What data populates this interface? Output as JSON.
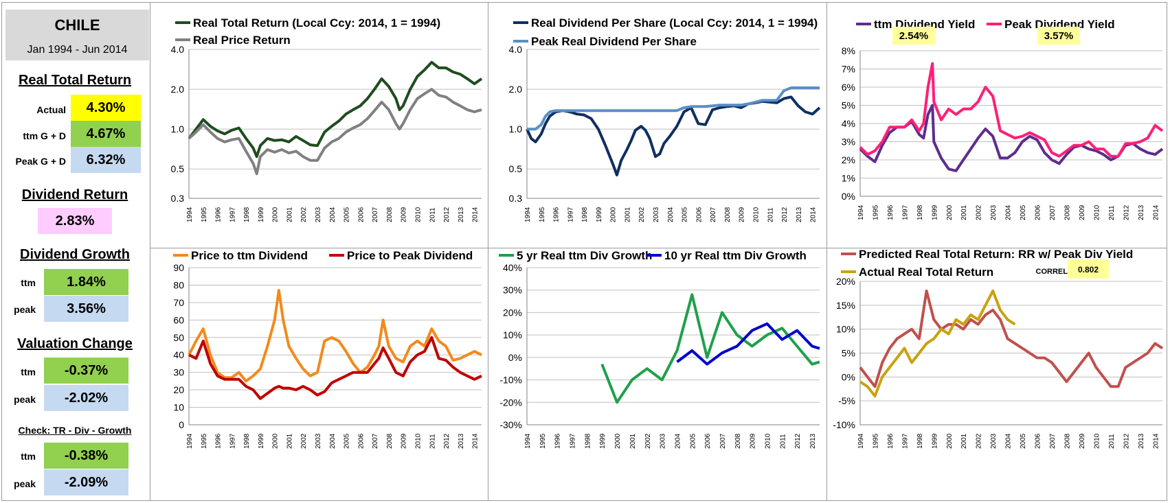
{
  "sidebar": {
    "country": "CHILE",
    "period": "Jan 1994 - Jun 2014",
    "real_total_return": {
      "title": "Real Total Return",
      "actual_label": "Actual",
      "actual": "4.30%",
      "ttm_label": "ttm  G + D",
      "ttm": "4.67%",
      "peak_label": "Peak  G + D",
      "peak": "6.32%"
    },
    "dividend_return": {
      "title": "Dividend Return",
      "value": "2.83%"
    },
    "dividend_growth": {
      "title": "Dividend Growth",
      "ttm_label": "ttm",
      "ttm": "1.84%",
      "peak_label": "peak",
      "peak": "3.56%"
    },
    "valuation_change": {
      "title": "Valuation Change",
      "ttm_label": "ttm",
      "ttm": "-0.37%",
      "peak_label": "peak",
      "peak": "-2.02%"
    },
    "check": {
      "title": "Check: TR - Div - Growth",
      "ttm_label": "ttm",
      "ttm": "-0.38%",
      "peak_label": "peak",
      "peak": "-2.09%"
    }
  },
  "chart_data": [
    {
      "type": "line",
      "id": "c1",
      "scale": "log",
      "x": [
        1994,
        1994.5,
        1995,
        1995.5,
        1996,
        1996.5,
        1997,
        1997.5,
        1998,
        1998.5,
        1998.75,
        1999,
        1999.5,
        2000,
        2000.5,
        2001,
        2001.5,
        2002,
        2002.5,
        2003,
        2003.5,
        2004,
        2004.5,
        2005,
        2005.5,
        2006,
        2006.5,
        2007,
        2007.5,
        2008,
        2008.5,
        2008.75,
        2009,
        2009.5,
        2010,
        2010.5,
        2011,
        2011.5,
        2012,
        2012.5,
        2013,
        2013.5,
        2014,
        2014.5
      ],
      "series": [
        {
          "name": "Real Total Return (Local Ccy: 2014, 1 = 1994)",
          "color": "#1e4d1e",
          "values": [
            0.85,
            1.0,
            1.18,
            1.05,
            0.97,
            0.92,
            0.98,
            1.02,
            0.85,
            0.72,
            0.62,
            0.75,
            0.85,
            0.82,
            0.83,
            0.8,
            0.88,
            0.82,
            0.76,
            0.75,
            0.95,
            1.05,
            1.15,
            1.3,
            1.4,
            1.5,
            1.7,
            2.0,
            2.4,
            2.1,
            1.7,
            1.4,
            1.5,
            2.0,
            2.5,
            2.8,
            3.2,
            2.9,
            2.9,
            2.7,
            2.6,
            2.4,
            2.2,
            2.4
          ]
        },
        {
          "name": "Real Price Return",
          "color": "#808080",
          "values": [
            0.85,
            0.95,
            1.08,
            0.95,
            0.85,
            0.8,
            0.83,
            0.85,
            0.68,
            0.55,
            0.46,
            0.62,
            0.7,
            0.67,
            0.7,
            0.66,
            0.68,
            0.62,
            0.58,
            0.58,
            0.72,
            0.8,
            0.85,
            0.95,
            1.02,
            1.08,
            1.2,
            1.38,
            1.6,
            1.4,
            1.1,
            1.0,
            1.1,
            1.4,
            1.7,
            1.85,
            2.0,
            1.8,
            1.75,
            1.6,
            1.5,
            1.4,
            1.35,
            1.4
          ]
        }
      ],
      "ticks": [
        4.0,
        2.0,
        1.0,
        0.5,
        0.3
      ],
      "tick_labels": [
        "4.0",
        "2.0",
        "1.0",
        "0.5",
        "0.3"
      ],
      "ylim": [
        0.3,
        4.0
      ],
      "xlim": [
        1994,
        2014.5
      ],
      "xlabels": [
        "1994",
        "1995",
        "1996",
        "1997",
        "1998",
        "1999",
        "2000",
        "2001",
        "2002",
        "2003",
        "2004",
        "2005",
        "2006",
        "2007",
        "2008",
        "2009",
        "2010",
        "2011",
        "2012",
        "2013",
        "2014"
      ]
    },
    {
      "type": "line",
      "id": "c2",
      "scale": "log",
      "x": [
        1994,
        1994.3,
        1994.6,
        1995,
        1995.3,
        1995.6,
        1996,
        1996.5,
        1997,
        1997.5,
        1998,
        1998.5,
        1999,
        1999.5,
        2000,
        2000.3,
        2000.6,
        2001,
        2001.3,
        2001.6,
        2002,
        2002.3,
        2002.6,
        2003,
        2003.3,
        2003.6,
        2004,
        2004.5,
        2005,
        2005.5,
        2006,
        2006.5,
        2007,
        2007.5,
        2008,
        2008.5,
        2009,
        2009.5,
        2010,
        2010.5,
        2011,
        2011.5,
        2012,
        2012.5,
        2013,
        2013.5,
        2014,
        2014.5
      ],
      "series": [
        {
          "name": "Real Dividend Per Share (Local Ccy: 2014, 1 = 1994)",
          "color": "#0f2f5f",
          "values": [
            1.0,
            0.85,
            0.8,
            0.92,
            1.1,
            1.25,
            1.35,
            1.38,
            1.35,
            1.3,
            1.28,
            1.2,
            1.0,
            0.75,
            0.55,
            0.45,
            0.58,
            0.7,
            0.82,
            0.98,
            1.05,
            0.98,
            0.85,
            0.62,
            0.65,
            0.78,
            0.88,
            1.05,
            1.35,
            1.45,
            1.1,
            1.08,
            1.4,
            1.45,
            1.48,
            1.5,
            1.45,
            1.55,
            1.58,
            1.62,
            1.6,
            1.58,
            1.7,
            1.75,
            1.5,
            1.35,
            1.3,
            1.45
          ]
        },
        {
          "name": "Peak Real Dividend Per Share",
          "color": "#5b8ec6",
          "values": [
            1.0,
            1.0,
            1.0,
            1.08,
            1.25,
            1.35,
            1.38,
            1.38,
            1.38,
            1.38,
            1.38,
            1.38,
            1.38,
            1.38,
            1.38,
            1.38,
            1.38,
            1.38,
            1.38,
            1.38,
            1.38,
            1.38,
            1.38,
            1.38,
            1.38,
            1.38,
            1.38,
            1.38,
            1.45,
            1.48,
            1.48,
            1.48,
            1.5,
            1.52,
            1.52,
            1.52,
            1.52,
            1.55,
            1.6,
            1.65,
            1.65,
            1.65,
            1.95,
            2.05,
            2.05,
            2.05,
            2.05,
            2.05
          ]
        }
      ],
      "ticks": [
        4.0,
        2.0,
        1.0,
        0.5,
        0.3
      ],
      "tick_labels": [
        "4.0",
        "2.0",
        "1.0",
        "0.5",
        "0.3"
      ],
      "ylim": [
        0.3,
        4.0
      ],
      "xlim": [
        1994,
        2014.5
      ],
      "xlabels": [
        "1994",
        "1995",
        "1996",
        "1997",
        "1998",
        "1999",
        "2000",
        "2001",
        "2002",
        "2003",
        "2004",
        "2005",
        "2006",
        "2007",
        "2008",
        "2009",
        "2010",
        "2011",
        "2012",
        "2013",
        "2014"
      ]
    },
    {
      "type": "line",
      "id": "c3",
      "scale": "linear",
      "x": [
        1994,
        1994.5,
        1995,
        1995.5,
        1996,
        1996.5,
        1997,
        1997.5,
        1998,
        1998.3,
        1998.6,
        1998.9,
        1999,
        1999.5,
        2000,
        2000.5,
        2001,
        2001.5,
        2002,
        2002.5,
        2003,
        2003.5,
        2004,
        2004.5,
        2005,
        2005.5,
        2006,
        2006.5,
        2007,
        2007.5,
        2008,
        2008.5,
        2009,
        2009.5,
        2010,
        2010.5,
        2011,
        2011.5,
        2012,
        2012.5,
        2013,
        2013.5,
        2014,
        2014.5
      ],
      "series": [
        {
          "name": "ttm Dividend Yield",
          "color": "#5f2c8c",
          "values": [
            2.6,
            2.2,
            1.9,
            2.8,
            3.5,
            3.8,
            3.8,
            4.1,
            3.4,
            3.2,
            4.5,
            5.0,
            3.0,
            2.1,
            1.5,
            1.4,
            2.0,
            2.6,
            3.2,
            3.7,
            3.3,
            2.1,
            2.1,
            2.4,
            3.0,
            3.3,
            3.1,
            2.4,
            2.0,
            1.8,
            2.3,
            2.7,
            2.8,
            2.6,
            2.5,
            2.3,
            2.0,
            2.2,
            2.8,
            2.9,
            2.6,
            2.4,
            2.3,
            2.6
          ]
        },
        {
          "name": "Peak Dividend Yield",
          "color": "#ff1f77",
          "values": [
            2.7,
            2.3,
            2.5,
            3.0,
            3.8,
            3.8,
            3.8,
            4.2,
            3.6,
            4.0,
            6.0,
            7.3,
            5.2,
            4.2,
            4.8,
            4.5,
            4.8,
            4.8,
            5.2,
            6.0,
            5.5,
            3.6,
            3.4,
            3.2,
            3.3,
            3.5,
            3.3,
            3.1,
            2.4,
            2.2,
            2.5,
            2.8,
            2.8,
            3.0,
            2.6,
            2.6,
            2.2,
            2.2,
            2.9,
            2.9,
            3.0,
            3.2,
            3.9,
            3.6
          ]
        }
      ],
      "ticks": [
        0,
        1,
        2,
        3,
        4,
        5,
        6,
        7,
        8
      ],
      "tick_labels": [
        "0%",
        "1%",
        "2%",
        "3%",
        "4%",
        "5%",
        "6%",
        "7%",
        "8%"
      ],
      "ylim": [
        0,
        8
      ],
      "xlim": [
        1994,
        2014.5
      ],
      "xlabels": [
        "1994",
        "1995",
        "1996",
        "1997",
        "1998",
        "1999",
        "2000",
        "2001",
        "2002",
        "2003",
        "2004",
        "2005",
        "2006",
        "2007",
        "2008",
        "2009",
        "2010",
        "2011",
        "2012",
        "2013",
        "2014"
      ],
      "annotations": [
        "2.54%",
        "3.57%"
      ]
    },
    {
      "type": "line",
      "id": "c4",
      "scale": "linear",
      "x": [
        1994,
        1994.5,
        1995,
        1995.5,
        1996,
        1996.5,
        1997,
        1997.5,
        1998,
        1998.5,
        1999,
        1999.5,
        2000,
        2000.3,
        2000.6,
        2001,
        2001.5,
        2002,
        2002.5,
        2003,
        2003.5,
        2004,
        2004.5,
        2005,
        2005.5,
        2006,
        2006.5,
        2007,
        2007.3,
        2007.6,
        2008,
        2008.5,
        2009,
        2009.5,
        2010,
        2010.5,
        2011,
        2011.5,
        2012,
        2012.5,
        2013,
        2013.5,
        2014,
        2014.5
      ],
      "series": [
        {
          "name": "Price to ttm Dividend",
          "color": "#f28a1c",
          "values": [
            40,
            48,
            55,
            40,
            30,
            27,
            27,
            30,
            25,
            28,
            32,
            45,
            60,
            77,
            60,
            45,
            38,
            32,
            28,
            30,
            48,
            50,
            48,
            42,
            35,
            30,
            33,
            40,
            45,
            60,
            45,
            38,
            36,
            45,
            48,
            45,
            55,
            48,
            45,
            37,
            38,
            40,
            42,
            40
          ]
        },
        {
          "name": "Price to Peak Dividend",
          "color": "#c00000",
          "values": [
            40,
            38,
            48,
            35,
            28,
            26,
            26,
            26,
            22,
            20,
            15,
            18,
            21,
            22,
            21,
            21,
            20,
            22,
            20,
            17,
            19,
            24,
            26,
            28,
            30,
            30,
            30,
            35,
            38,
            44,
            38,
            30,
            28,
            36,
            40,
            42,
            50,
            38,
            37,
            33,
            30,
            28,
            26,
            28
          ]
        }
      ],
      "ticks": [
        0,
        10,
        20,
        30,
        40,
        50,
        60,
        70,
        80,
        90
      ],
      "tick_labels": [
        "0",
        "10",
        "20",
        "30",
        "40",
        "50",
        "60",
        "70",
        "80",
        "90"
      ],
      "ylim": [
        0,
        90
      ],
      "xlim": [
        1994,
        2014.5
      ],
      "xlabels": [
        "1994",
        "1995",
        "1996",
        "1997",
        "1998",
        "1999",
        "2000",
        "2001",
        "2002",
        "2003",
        "2004",
        "2005",
        "2006",
        "2007",
        "2008",
        "2009",
        "2010",
        "2011",
        "2012",
        "2013",
        "2014"
      ]
    },
    {
      "type": "line",
      "id": "c5",
      "scale": "linear",
      "x": [
        1994,
        1995,
        1996,
        1997,
        1998,
        1999,
        2000,
        2001,
        2002,
        2003,
        2004,
        2005,
        2006,
        2007,
        2008,
        2009,
        2010,
        2011,
        2012,
        2013,
        2013.5
      ],
      "series": [
        {
          "name": "5 yr Real ttm Div Growth",
          "color": "#1ea14a",
          "values": [
            null,
            null,
            null,
            null,
            null,
            -3,
            -20,
            -10,
            -5,
            -10,
            3,
            28,
            0,
            20,
            10,
            5,
            10,
            13,
            5,
            -3,
            -2
          ]
        },
        {
          "name": "10 yr Real ttm Div Growth",
          "color": "#0000cc",
          "values": [
            null,
            null,
            null,
            null,
            null,
            null,
            null,
            null,
            null,
            null,
            -2,
            3,
            -3,
            2,
            5,
            12,
            15,
            8,
            12,
            5,
            4
          ]
        }
      ],
      "ticks": [
        -30,
        -20,
        -10,
        0,
        10,
        20,
        30,
        40
      ],
      "tick_labels": [
        "-30%",
        "-20%",
        "-10%",
        "0%",
        "10%",
        "20%",
        "30%",
        "40%"
      ],
      "ylim": [
        -30,
        40
      ],
      "xlim": [
        1994,
        2013.5
      ],
      "xlabels": [
        "1994",
        "1995",
        "1996",
        "1997",
        "1998",
        "1999",
        "2000",
        "2001",
        "2002",
        "2003",
        "2004",
        "2005",
        "2006",
        "2007",
        "2008",
        "2009",
        "2010",
        "2011",
        "2012",
        "2013"
      ]
    },
    {
      "type": "line",
      "id": "c6",
      "scale": "linear",
      "x": [
        1994,
        1994.5,
        1995,
        1995.5,
        1996,
        1996.5,
        1997,
        1997.5,
        1998,
        1998.5,
        1999,
        1999.5,
        2000,
        2000.5,
        2001,
        2001.5,
        2002,
        2002.5,
        2003,
        2003.5,
        2004,
        2004.5,
        2005,
        2005.5,
        2006,
        2006.5,
        2007,
        2007.5,
        2008,
        2008.5,
        2009,
        2009.5,
        2010,
        2010.5,
        2011,
        2011.5,
        2012,
        2012.5,
        2013,
        2013.5,
        2014,
        2014.5
      ],
      "series": [
        {
          "name": "Predicted Real Total Return: RR w/ Peak Div Yield",
          "color": "#c0504d",
          "values": [
            2,
            0,
            -2,
            3,
            6,
            8,
            9,
            10,
            8,
            18,
            12,
            10,
            11,
            11,
            10,
            12,
            11,
            13,
            14,
            12,
            8,
            7,
            6,
            5,
            4,
            4,
            3,
            1,
            -1,
            1,
            3,
            5,
            2,
            0,
            -2,
            -2,
            2,
            3,
            4,
            5,
            7,
            6
          ]
        },
        {
          "name": "Actual Real Total Return",
          "color": "#c9a20f",
          "values": [
            -1,
            -2,
            -4,
            0,
            2,
            4,
            6,
            3,
            5,
            7,
            8,
            10,
            9,
            12,
            11,
            13,
            12,
            15,
            18,
            14,
            12,
            11,
            null,
            null,
            null,
            null,
            null,
            null,
            null,
            null,
            null,
            null,
            null,
            null,
            null,
            null,
            null,
            null,
            null,
            null,
            null,
            null
          ]
        }
      ],
      "ticks": [
        -10,
        -5,
        0,
        5,
        10,
        15,
        20
      ],
      "tick_labels": [
        "-10%",
        "-5%",
        "0%",
        "5%",
        "10%",
        "15%",
        "20%"
      ],
      "ylim": [
        -10,
        20
      ],
      "xlim": [
        1994,
        2014.5
      ],
      "xlabels": [
        "1994",
        "1995",
        "1996",
        "1997",
        "1998",
        "1999",
        "2000",
        "2001",
        "2002",
        "2003",
        "2004",
        "2005",
        "2006",
        "2007",
        "2008",
        "2009",
        "2010",
        "2011",
        "2012",
        "2013",
        "2014"
      ],
      "annotation_label": "CORREL",
      "annotation_value": "0.802"
    }
  ],
  "colors": {
    "yellow": "#ffff00",
    "green": "#92d050",
    "blue": "#c5d9f1",
    "pink": "#ffccff",
    "note": "#ffff99"
  }
}
